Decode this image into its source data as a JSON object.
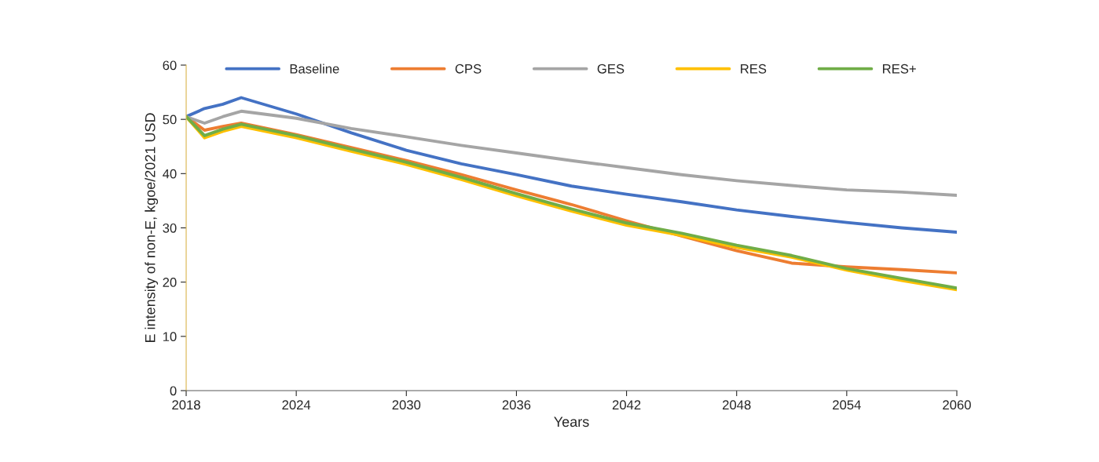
{
  "chart_data": {
    "type": "line",
    "xlabel": "Years",
    "ylabel": "E intensity of non-E, kgoe/2021 USD",
    "x": [
      2018,
      2019,
      2020,
      2021,
      2024,
      2027,
      2030,
      2033,
      2036,
      2039,
      2042,
      2045,
      2048,
      2051,
      2054,
      2057,
      2060
    ],
    "series": [
      {
        "name": "Baseline",
        "color": "#4472c4",
        "values": [
          50.5,
          52,
          52.8,
          54,
          51,
          47.5,
          44.3,
          41.8,
          39.8,
          37.7,
          36.2,
          34.8,
          33.3,
          32.1,
          31,
          30,
          29.2
        ]
      },
      {
        "name": "CPS",
        "color": "#ed7d31",
        "values": [
          50.5,
          48,
          48.7,
          49.3,
          47.2,
          44.8,
          42.4,
          39.8,
          37,
          34.3,
          31.3,
          28.5,
          25.8,
          23.5,
          22.8,
          22.3,
          21.7
        ]
      },
      {
        "name": "GES",
        "color": "#a5a5a5",
        "values": [
          50.5,
          49.3,
          50.5,
          51.5,
          50.2,
          48.3,
          46.8,
          45.2,
          43.8,
          42.4,
          41.1,
          39.8,
          38.7,
          37.8,
          37,
          36.6,
          36
        ]
      },
      {
        "name": "RES",
        "color": "#ffc000",
        "values": [
          50.5,
          46.6,
          47.8,
          48.7,
          46.6,
          44.1,
          41.7,
          38.9,
          35.9,
          33.1,
          30.5,
          28.6,
          26.4,
          24.6,
          22.2,
          20.3,
          18.6
        ]
      },
      {
        "name": "RES+",
        "color": "#70ad47",
        "values": [
          50.5,
          47,
          48.2,
          49.1,
          47,
          44.5,
          42.1,
          39.3,
          36.3,
          33.5,
          30.9,
          29,
          26.8,
          24.9,
          22.5,
          20.7,
          18.9
        ]
      }
    ],
    "xlim": [
      2018,
      2060
    ],
    "xticks": [
      2018,
      2024,
      2030,
      2036,
      2042,
      2048,
      2054,
      2060
    ],
    "ylim": [
      0,
      60
    ],
    "yticks": [
      0,
      10,
      20,
      30,
      40,
      50,
      60
    ],
    "grid": false,
    "legend": "top",
    "line_style": "solid",
    "marker": "none"
  }
}
